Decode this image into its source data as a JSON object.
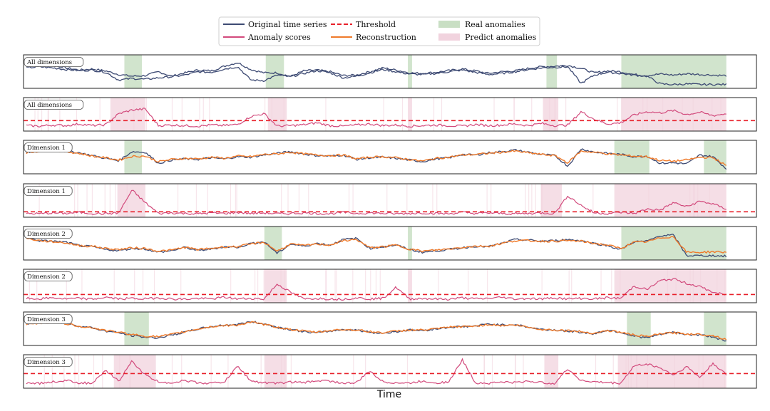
{
  "colors": {
    "original": "#3d4a73",
    "score": "#d24a7c",
    "threshold": "#e8202a",
    "reconstruction": "#ef7a2a",
    "real_anomaly": "#c9dfc4",
    "predicted_anomaly": "#f1d3de"
  },
  "legend": {
    "original": "Original time series",
    "threshold": "Threshold",
    "real": "Real anomalies",
    "scores": "Anomaly scores",
    "reconstruction": "Reconstruction",
    "predicted": "Predict anomalies"
  },
  "chart_data": {
    "type": "line",
    "xlabel": "Time",
    "x_range": [
      0,
      1000
    ],
    "real_anomaly_intervals": [
      [
        140,
        165
      ],
      [
        342,
        368
      ],
      [
        545,
        551
      ],
      [
        743,
        758
      ],
      [
        850,
        1000
      ]
    ],
    "panels": [
      {
        "label": "All dimensions",
        "kind": "series",
        "real_intervals": [
          [
            140,
            165
          ],
          [
            342,
            368
          ],
          [
            545,
            551
          ],
          [
            743,
            758
          ],
          [
            850,
            1000
          ]
        ],
        "series": [
          {
            "role": "original",
            "values": [
              0.72,
              0.78,
              0.74,
              0.66,
              0.58,
              0.62,
              0.55,
              0.42,
              0.36,
              0.38,
              0.52,
              0.36,
              0.48,
              0.58,
              0.55,
              0.72,
              0.85,
              0.6,
              0.48,
              0.48,
              0.35,
              0.55,
              0.58,
              0.52,
              0.38,
              0.4,
              0.52,
              0.66,
              0.58,
              0.48,
              0.46,
              0.5,
              0.56,
              0.62,
              0.55,
              0.46,
              0.52,
              0.55,
              0.64,
              0.7,
              0.72,
              0.75,
              0.64,
              0.48,
              0.55,
              0.52,
              0.42,
              0.38,
              0.44,
              0.4,
              0.45,
              0.42,
              0.4,
              0.38
            ]
          },
          {
            "role": "original",
            "values": [
              0.66,
              0.7,
              0.66,
              0.6,
              0.56,
              0.58,
              0.5,
              0.22,
              0.28,
              0.25,
              0.3,
              0.34,
              0.4,
              0.52,
              0.5,
              0.62,
              0.7,
              0.22,
              0.2,
              0.4,
              0.34,
              0.46,
              0.56,
              0.48,
              0.3,
              0.36,
              0.48,
              0.6,
              0.52,
              0.44,
              0.42,
              0.46,
              0.52,
              0.58,
              0.5,
              0.42,
              0.46,
              0.52,
              0.6,
              0.66,
              0.68,
              0.7,
              0.1,
              0.4,
              0.5,
              0.46,
              0.4,
              0.36,
              0.08,
              0.06,
              0.08,
              0.06,
              0.06,
              0.06
            ]
          }
        ],
        "ylim": [
          0,
          1
        ]
      },
      {
        "label": "All dimensions",
        "kind": "score",
        "threshold": 0.3,
        "predicted_intervals": [
          [
            120,
            170
          ],
          [
            345,
            372
          ],
          [
            545,
            551
          ],
          [
            738,
            760
          ],
          [
            850,
            1000
          ]
        ],
        "values": [
          0.12,
          0.1,
          0.14,
          0.12,
          0.18,
          0.12,
          0.15,
          0.55,
          0.68,
          0.72,
          0.12,
          0.14,
          0.12,
          0.1,
          0.14,
          0.12,
          0.16,
          0.45,
          0.55,
          0.1,
          0.12,
          0.15,
          0.22,
          0.12,
          0.1,
          0.14,
          0.18,
          0.12,
          0.14,
          0.1,
          0.12,
          0.14,
          0.12,
          0.1,
          0.16,
          0.12,
          0.14,
          0.18,
          0.12,
          0.2,
          0.12,
          0.14,
          0.62,
          0.35,
          0.18,
          0.22,
          0.5,
          0.62,
          0.58,
          0.66,
          0.52,
          0.6,
          0.48,
          0.55
        ],
        "ylim": [
          0,
          1
        ]
      },
      {
        "label": "Dimension 1",
        "kind": "series",
        "real_intervals": [
          [
            140,
            165
          ],
          [
            840,
            890
          ],
          [
            968,
            1000
          ]
        ],
        "series": [
          {
            "role": "original",
            "values": [
              0.7,
              0.76,
              0.82,
              0.74,
              0.68,
              0.58,
              0.48,
              0.4,
              0.72,
              0.7,
              0.3,
              0.42,
              0.46,
              0.44,
              0.5,
              0.46,
              0.54,
              0.52,
              0.6,
              0.66,
              0.72,
              0.64,
              0.58,
              0.56,
              0.6,
              0.44,
              0.5,
              0.52,
              0.48,
              0.42,
              0.36,
              0.46,
              0.5,
              0.62,
              0.6,
              0.68,
              0.72,
              0.78,
              0.7,
              0.62,
              0.58,
              0.2,
              0.82,
              0.7,
              0.66,
              0.62,
              0.54,
              0.56,
              0.3,
              0.32,
              0.28,
              0.6,
              0.54,
              0.1
            ]
          },
          {
            "role": "reconstruction",
            "values": [
              0.68,
              0.74,
              0.78,
              0.72,
              0.66,
              0.56,
              0.5,
              0.42,
              0.55,
              0.56,
              0.36,
              0.44,
              0.48,
              0.46,
              0.52,
              0.48,
              0.56,
              0.54,
              0.62,
              0.64,
              0.7,
              0.64,
              0.6,
              0.58,
              0.6,
              0.46,
              0.52,
              0.54,
              0.5,
              0.44,
              0.38,
              0.48,
              0.52,
              0.6,
              0.62,
              0.66,
              0.7,
              0.74,
              0.68,
              0.62,
              0.58,
              0.32,
              0.74,
              0.7,
              0.64,
              0.6,
              0.56,
              0.54,
              0.4,
              0.38,
              0.42,
              0.52,
              0.5,
              0.22
            ]
          }
        ],
        "ylim": [
          0,
          1
        ]
      },
      {
        "label": "Dimension 1",
        "kind": "score",
        "threshold": 0.12,
        "predicted_intervals": [
          [
            130,
            170
          ],
          [
            735,
            765
          ],
          [
            840,
            1000
          ]
        ],
        "values": [
          0.06,
          0.05,
          0.08,
          0.06,
          0.1,
          0.06,
          0.05,
          0.08,
          0.9,
          0.45,
          0.06,
          0.08,
          0.06,
          0.05,
          0.08,
          0.06,
          0.1,
          0.06,
          0.08,
          0.05,
          0.06,
          0.08,
          0.06,
          0.05,
          0.1,
          0.06,
          0.08,
          0.06,
          0.05,
          0.06,
          0.08,
          0.06,
          0.05,
          0.1,
          0.06,
          0.08,
          0.06,
          0.05,
          0.06,
          0.08,
          0.06,
          0.7,
          0.35,
          0.08,
          0.06,
          0.1,
          0.06,
          0.22,
          0.18,
          0.45,
          0.3,
          0.5,
          0.4,
          0.22
        ],
        "ylim": [
          0,
          1
        ]
      },
      {
        "label": "Dimension 2",
        "kind": "series",
        "real_intervals": [
          [
            340,
            365
          ],
          [
            545,
            551
          ],
          [
            850,
            1000
          ]
        ],
        "series": [
          {
            "role": "original",
            "values": [
              0.72,
              0.62,
              0.6,
              0.56,
              0.44,
              0.4,
              0.3,
              0.26,
              0.34,
              0.32,
              0.2,
              0.26,
              0.38,
              0.26,
              0.32,
              0.4,
              0.38,
              0.52,
              0.58,
              0.16,
              0.5,
              0.42,
              0.52,
              0.46,
              0.66,
              0.7,
              0.34,
              0.4,
              0.46,
              0.3,
              0.2,
              0.25,
              0.3,
              0.36,
              0.42,
              0.4,
              0.52,
              0.66,
              0.64,
              0.6,
              0.62,
              0.66,
              0.62,
              0.52,
              0.44,
              0.3,
              0.58,
              0.6,
              0.8,
              0.82,
              0.08,
              0.08,
              0.08,
              0.06
            ]
          },
          {
            "role": "reconstruction",
            "values": [
              0.7,
              0.62,
              0.58,
              0.54,
              0.44,
              0.42,
              0.34,
              0.3,
              0.36,
              0.34,
              0.24,
              0.28,
              0.38,
              0.3,
              0.34,
              0.4,
              0.4,
              0.5,
              0.56,
              0.24,
              0.5,
              0.44,
              0.5,
              0.46,
              0.62,
              0.66,
              0.36,
              0.4,
              0.46,
              0.32,
              0.24,
              0.28,
              0.32,
              0.38,
              0.42,
              0.42,
              0.52,
              0.62,
              0.62,
              0.6,
              0.6,
              0.62,
              0.6,
              0.52,
              0.46,
              0.34,
              0.56,
              0.58,
              0.72,
              0.76,
              0.2,
              0.2,
              0.22,
              0.2
            ]
          }
        ],
        "ylim": [
          0,
          1
        ]
      },
      {
        "label": "Dimension 2",
        "kind": "score",
        "threshold": 0.22,
        "predicted_intervals": [
          [
            340,
            372
          ],
          [
            545,
            551
          ],
          [
            840,
            1000
          ]
        ],
        "values": [
          0.08,
          0.06,
          0.1,
          0.06,
          0.08,
          0.05,
          0.12,
          0.06,
          0.08,
          0.06,
          0.1,
          0.06,
          0.05,
          0.08,
          0.06,
          0.12,
          0.06,
          0.08,
          0.06,
          0.6,
          0.3,
          0.06,
          0.08,
          0.06,
          0.05,
          0.1,
          0.06,
          0.08,
          0.48,
          0.06,
          0.08,
          0.06,
          0.05,
          0.1,
          0.06,
          0.08,
          0.12,
          0.06,
          0.08,
          0.06,
          0.1,
          0.06,
          0.08,
          0.06,
          0.1,
          0.08,
          0.52,
          0.4,
          0.72,
          0.78,
          0.62,
          0.5,
          0.3,
          0.2
        ],
        "ylim": [
          0,
          1
        ]
      },
      {
        "label": "Dimension 3",
        "kind": "series",
        "real_intervals": [
          [
            140,
            175
          ],
          [
            858,
            892
          ],
          [
            968,
            1000
          ]
        ],
        "series": [
          {
            "role": "original",
            "values": [
              0.7,
              0.74,
              0.78,
              0.72,
              0.62,
              0.56,
              0.44,
              0.38,
              0.28,
              0.22,
              0.2,
              0.3,
              0.4,
              0.52,
              0.6,
              0.66,
              0.68,
              0.78,
              0.7,
              0.58,
              0.5,
              0.42,
              0.38,
              0.44,
              0.5,
              0.48,
              0.4,
              0.36,
              0.42,
              0.48,
              0.46,
              0.52,
              0.58,
              0.6,
              0.62,
              0.7,
              0.66,
              0.68,
              0.58,
              0.5,
              0.48,
              0.44,
              0.4,
              0.34,
              0.48,
              0.4,
              0.26,
              0.2,
              0.32,
              0.4,
              0.32,
              0.3,
              0.24,
              0.06
            ]
          },
          {
            "role": "reconstruction",
            "values": [
              0.68,
              0.72,
              0.76,
              0.7,
              0.62,
              0.56,
              0.46,
              0.4,
              0.32,
              0.26,
              0.24,
              0.32,
              0.42,
              0.52,
              0.6,
              0.64,
              0.66,
              0.76,
              0.68,
              0.58,
              0.5,
              0.44,
              0.4,
              0.46,
              0.5,
              0.48,
              0.42,
              0.38,
              0.44,
              0.48,
              0.48,
              0.52,
              0.58,
              0.6,
              0.62,
              0.68,
              0.64,
              0.66,
              0.58,
              0.5,
              0.48,
              0.46,
              0.42,
              0.36,
              0.46,
              0.4,
              0.3,
              0.24,
              0.34,
              0.38,
              0.34,
              0.32,
              0.28,
              0.14
            ]
          }
        ],
        "ylim": [
          0,
          1
        ]
      },
      {
        "label": "Dimension 3",
        "kind": "score",
        "threshold": 0.45,
        "predicted_intervals": [
          [
            125,
            185
          ],
          [
            340,
            372
          ],
          [
            740,
            760
          ],
          [
            845,
            1000
          ]
        ],
        "values": [
          0.12,
          0.1,
          0.15,
          0.2,
          0.12,
          0.1,
          0.55,
          0.18,
          0.9,
          0.4,
          0.15,
          0.12,
          0.2,
          0.12,
          0.1,
          0.15,
          0.72,
          0.18,
          0.12,
          0.1,
          0.15,
          0.12,
          0.2,
          0.18,
          0.1,
          0.12,
          0.55,
          0.15,
          0.12,
          0.1,
          0.18,
          0.12,
          0.15,
          0.95,
          0.12,
          0.1,
          0.15,
          0.12,
          0.18,
          0.12,
          0.1,
          0.62,
          0.2,
          0.15,
          0.12,
          0.1,
          0.72,
          0.8,
          0.65,
          0.4,
          0.7,
          0.3,
          0.82,
          0.4
        ],
        "ylim": [
          0,
          1
        ]
      }
    ]
  }
}
